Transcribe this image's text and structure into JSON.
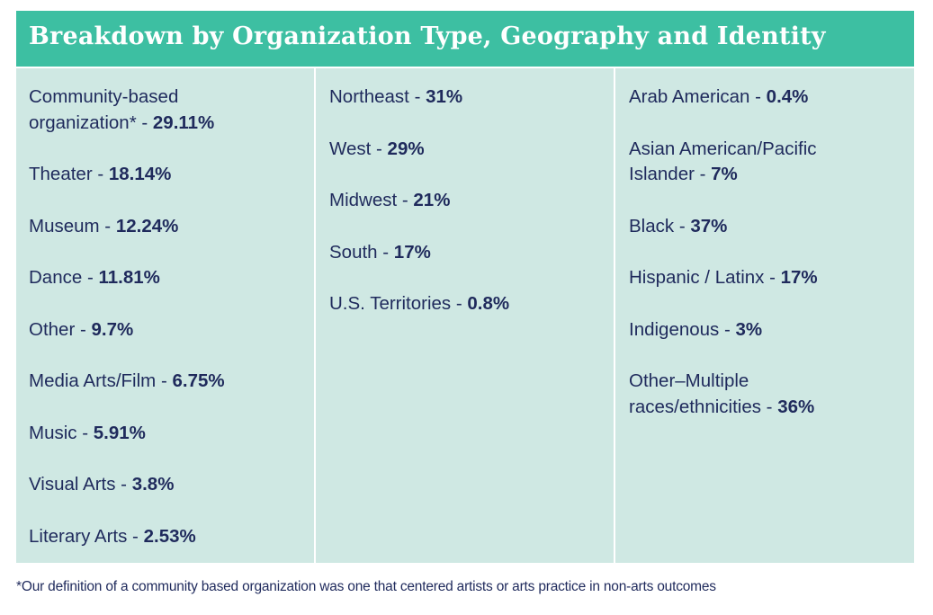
{
  "title": "Breakdown by Organization Type, Geography and Identity",
  "columns": [
    {
      "items": [
        {
          "label": "Community-based organization* - ",
          "value": "29.11%"
        },
        {
          "label": "Theater - ",
          "value": "18.14%"
        },
        {
          "label": "Museum - ",
          "value": "12.24%"
        },
        {
          "label": "Dance - ",
          "value": "11.81%"
        },
        {
          "label": "Other - ",
          "value": "9.7%"
        },
        {
          "label": "Media Arts/Film - ",
          "value": "6.75%"
        },
        {
          "label": "Music - ",
          "value": "5.91%"
        },
        {
          "label": "Visual Arts - ",
          "value": "3.8%"
        },
        {
          "label": "Literary Arts - ",
          "value": "2.53%"
        }
      ]
    },
    {
      "items": [
        {
          "label": "Northeast - ",
          "value": "31%"
        },
        {
          "label": "West - ",
          "value": "29%"
        },
        {
          "label": "Midwest - ",
          "value": "21%"
        },
        {
          "label": "South - ",
          "value": "17%"
        },
        {
          "label": "U.S. Territories - ",
          "value": "0.8%"
        }
      ]
    },
    {
      "items": [
        {
          "label": "Arab American - ",
          "value": "0.4%"
        },
        {
          "label": "Asian American/Pacific Islander - ",
          "value": "7%"
        },
        {
          "label": "Black - ",
          "value": "37%"
        },
        {
          "label": "Hispanic / Latinx - ",
          "value": "17%"
        },
        {
          "label": "Indigenous - ",
          "value": "3%"
        },
        {
          "label": "Other–Multiple races/ethnicities - ",
          "value": "36%"
        }
      ]
    }
  ],
  "footnote": "*Our definition of a community based organization was one that centered artists or arts practice in non-arts outcomes",
  "colors": {
    "header": "#3dbfa2",
    "cell": "#cfe8e3",
    "text": "#1f2a5c"
  }
}
